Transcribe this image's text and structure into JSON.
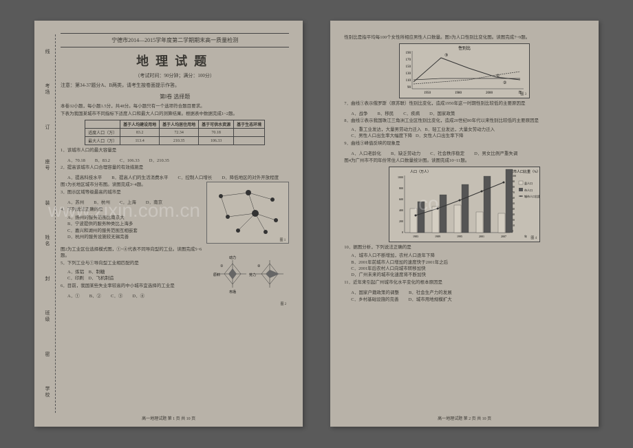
{
  "page1": {
    "side": [
      "线",
      "考场",
      "订",
      "座号",
      "装",
      "姓名",
      "封",
      "班级",
      "密",
      "学校"
    ],
    "header": "宁德市2014—2015学年度第二学期期末高一质量检测",
    "mainTitle": "地理试题",
    "subtitle": "（考试时间：90分钟；满分：100分）",
    "note": "注意：第34-37题分A、B两类，请考生按卷面提示作答。",
    "sectionTitle": "第Ⅰ卷 选择题",
    "intro1": "本卷32小题，每小题1.5分，共48分。每小题只有一个选项符合题目要求。",
    "intro2": "下表为我国某城市不同指标下适度人口和最大人口的测算结果。根据表中数据完成1~2题。",
    "table": {
      "headers": [
        "",
        "基于人均建设用地",
        "基于人均居住用地",
        "基于可供水资源",
        "基于生态环境"
      ],
      "rows": [
        [
          "适度人口（万）",
          "83.2",
          "72.34",
          "70.18",
          ""
        ],
        [
          "最大人口（万）",
          "113.4",
          "210.35",
          "106.33",
          ""
        ]
      ]
    },
    "q1": "1．该城市人口的最大容量是",
    "q1opts": [
      "A．70.18",
      "B．83.2",
      "C．106.33",
      "D．210.35"
    ],
    "q2": "2．提高该城市人口合理容量的有效措施是",
    "q2opts": [
      "A．提高科技水平",
      "B．提高人们的生活消费水平",
      "C．控制人口增长",
      "D．降低地区的对外开放程度"
    ],
    "intro3": "图1为长地区城市分布图。读图完成3~4题。",
    "q3": "3．图示区域等级最高的城市是",
    "q3opts": [
      "A．苏州",
      "B．杭州",
      "C．上海",
      "D．南京"
    ],
    "q4": "4．下列说法正确的是",
    "q4opts": [
      "A．扬州的服务范围比南京大",
      "B．宁波提供的服务种类比上海多",
      "C．嘉兴和湖州的服务范围互相嵌套",
      "D．杭州的服务设施较无锡完善"
    ],
    "intro4": "图2为工业区位选择模式图，①~④代表不同导向型的工业。读图完成5~6题。",
    "q5": "5．下列工业与①导向型工业相匹配的是",
    "q5opts": [
      "A．炼铝",
      "B．制糖",
      "C．印刷",
      "D．飞机制造"
    ],
    "q6": "6．目前，我国某些失业率较高的中小城市宜选择的工业是",
    "q6opts": [
      "A．①",
      "B．②",
      "C．③",
      "D．④"
    ],
    "footer": "高一地理试题 第 1 页 共 10 页",
    "fig1label": "图 1",
    "fig2label": "图 2"
  },
  "page2": {
    "topnote": "性别比是指平均每100个女性所相应男性人口数量。图3为人口性别比变化图。读图完成7~9题。",
    "chart3": {
      "title": "性别比",
      "ylabels": [
        "190",
        "170",
        "150",
        "130",
        "110",
        "90"
      ],
      "xlabels": [
        "1950",
        "1980",
        "2000",
        "年"
      ],
      "series": [
        "①",
        "②",
        "③"
      ],
      "label": "图 3",
      "curve1": [
        [
          20,
          55
        ],
        [
          60,
          20
        ],
        [
          100,
          35
        ],
        [
          140,
          48
        ],
        [
          175,
          52
        ]
      ],
      "curve2": [
        [
          20,
          52
        ],
        [
          60,
          50
        ],
        [
          100,
          50
        ],
        [
          140,
          50
        ],
        [
          175,
          50
        ]
      ],
      "curve3": [
        [
          20,
          58
        ],
        [
          60,
          55
        ],
        [
          100,
          52
        ],
        [
          140,
          45
        ],
        [
          175,
          40
        ]
      ]
    },
    "q7": "7．曲线①表示俄罗斯（原苏联）性别比变化，造成1950年这一时期性别比较低的主要原因是",
    "q7opts": [
      "A．战争",
      "B．移民",
      "C．疾病",
      "D．国家政策"
    ],
    "q8": "8．曲线②表示我国珠江三角洲工业区性别比变化，造成20世纪80年代以来性别比较低的主要原因是",
    "q8opts": [
      "A．重工业发达，大量男劳动力迁入",
      "B．轻工业发达，大量女劳动力迁入",
      "C．男性人口出生率大幅度下降",
      "D．女性人口出生率下降"
    ],
    "q9": "9．曲线③峰值反映的现象是",
    "q9opts": [
      "A．人口老龄化",
      "B．缺乏劳动力",
      "C．社会秩序稳定",
      "D．男女比例严重失调"
    ],
    "intro4note": "图4为广州市不同年份常住人口数量统计图。读图完成10~11题。",
    "chart4": {
      "leftTitle": "人口（万人）",
      "rightTitle": "城市人口比重（%）",
      "ylabelsL": [
        "1000",
        "800",
        "600",
        "400",
        "200",
        "0"
      ],
      "ylabelsR": [
        "100",
        "90",
        "80",
        "70",
        "60",
        "50",
        "40",
        "30",
        "20",
        "10",
        "0"
      ],
      "xlabels": [
        "1983",
        "1989",
        "1995",
        "2001",
        "2007",
        "年"
      ],
      "legend": [
        "县人口",
        "市人口",
        "城市人口比重"
      ],
      "label": "图 4",
      "bars": [
        {
          "x": 30,
          "county": 35,
          "city": 45
        },
        {
          "x": 62,
          "county": 38,
          "city": 55
        },
        {
          "x": 94,
          "county": 40,
          "city": 70
        },
        {
          "x": 126,
          "county": 30,
          "city": 82
        },
        {
          "x": 158,
          "county": 28,
          "city": 92
        }
      ],
      "line": [
        [
          38,
          70
        ],
        [
          70,
          60
        ],
        [
          102,
          48
        ],
        [
          134,
          35
        ],
        [
          166,
          22
        ]
      ]
    },
    "q10": "10．据图分析，下列说法正确的是",
    "q10opts": [
      "A．城市人口不断增加，农村人口逐年下降",
      "B．2001年前城市人口增加的速度快于2001年之后",
      "C．2001年后农村人口向城市转移加快",
      "D．广州未来的城市化速度将不断加快"
    ],
    "q11": "11．近年来引起广州城市化水平变化的根本原因是",
    "q11opts": [
      "A．国家户籍政策的调整",
      "B．社会生产力的发展",
      "C．乡村基础设施的完善",
      "D．城市用地规模扩大"
    ],
    "footer": "高一地理试题 第 2 页 共 10 页"
  },
  "watermark": "www.zixin.com.cn"
}
